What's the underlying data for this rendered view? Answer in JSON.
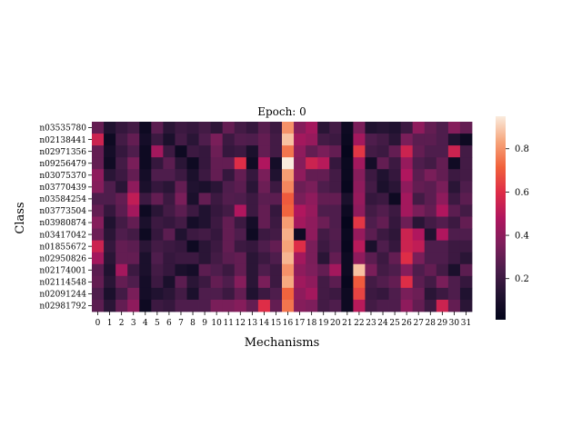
{
  "chart_data": {
    "type": "heatmap",
    "title": "Epoch: 0",
    "xlabel": "Mechanisms",
    "ylabel": "Class",
    "x_ticks": [
      "0",
      "1",
      "2",
      "3",
      "4",
      "5",
      "6",
      "7",
      "8",
      "9",
      "10",
      "11",
      "12",
      "13",
      "14",
      "15",
      "16",
      "17",
      "18",
      "19",
      "20",
      "21",
      "22",
      "23",
      "24",
      "25",
      "26",
      "27",
      "28",
      "29",
      "30",
      "31"
    ],
    "y_ticks": [
      "n03535780",
      "n02138441",
      "n02971356",
      "n09256479",
      "n03075370",
      "n03770439",
      "n03584254",
      "n03773504",
      "n03980874",
      "n03417042",
      "n01855672",
      "n02950826",
      "n02174001",
      "n02114548",
      "n02091244",
      "n02981792"
    ],
    "colorbar_ticks": [
      0.2,
      0.4,
      0.6,
      0.8
    ],
    "vmin": 0.01,
    "vmax": 0.95,
    "colormap": "rocket",
    "values": [
      [
        0.3,
        0.12,
        0.18,
        0.22,
        0.05,
        0.28,
        0.15,
        0.2,
        0.18,
        0.22,
        0.16,
        0.3,
        0.22,
        0.18,
        0.27,
        0.2,
        0.8,
        0.38,
        0.45,
        0.15,
        0.22,
        0.05,
        0.35,
        0.12,
        0.14,
        0.12,
        0.2,
        0.4,
        0.3,
        0.25,
        0.38,
        0.3
      ],
      [
        0.55,
        0.05,
        0.22,
        0.3,
        0.08,
        0.2,
        0.1,
        0.22,
        0.15,
        0.25,
        0.35,
        0.2,
        0.26,
        0.25,
        0.3,
        0.22,
        0.88,
        0.45,
        0.42,
        0.22,
        0.2,
        0.04,
        0.45,
        0.25,
        0.22,
        0.15,
        0.35,
        0.28,
        0.28,
        0.25,
        0.12,
        0.05
      ],
      [
        0.3,
        0.08,
        0.18,
        0.25,
        0.05,
        0.45,
        0.2,
        0.05,
        0.2,
        0.18,
        0.32,
        0.18,
        0.2,
        0.1,
        0.3,
        0.22,
        0.75,
        0.4,
        0.3,
        0.35,
        0.3,
        0.02,
        0.62,
        0.22,
        0.2,
        0.3,
        0.55,
        0.3,
        0.25,
        0.25,
        0.55,
        0.22
      ],
      [
        0.3,
        0.06,
        0.22,
        0.35,
        0.05,
        0.18,
        0.28,
        0.15,
        0.05,
        0.18,
        0.3,
        0.3,
        0.6,
        0.06,
        0.48,
        0.08,
        0.95,
        0.38,
        0.55,
        0.5,
        0.18,
        0.04,
        0.45,
        0.08,
        0.3,
        0.2,
        0.42,
        0.25,
        0.22,
        0.3,
        0.06,
        0.22
      ],
      [
        0.4,
        0.15,
        0.2,
        0.3,
        0.08,
        0.25,
        0.25,
        0.2,
        0.1,
        0.2,
        0.3,
        0.18,
        0.3,
        0.18,
        0.35,
        0.12,
        0.82,
        0.4,
        0.3,
        0.3,
        0.22,
        0.04,
        0.38,
        0.2,
        0.12,
        0.18,
        0.48,
        0.28,
        0.35,
        0.3,
        0.2,
        0.22
      ],
      [
        0.38,
        0.25,
        0.15,
        0.4,
        0.1,
        0.18,
        0.15,
        0.3,
        0.12,
        0.1,
        0.15,
        0.25,
        0.28,
        0.15,
        0.32,
        0.2,
        0.78,
        0.32,
        0.35,
        0.25,
        0.22,
        0.03,
        0.4,
        0.22,
        0.1,
        0.15,
        0.4,
        0.3,
        0.28,
        0.35,
        0.15,
        0.25
      ],
      [
        0.25,
        0.25,
        0.3,
        0.52,
        0.2,
        0.3,
        0.2,
        0.35,
        0.1,
        0.3,
        0.2,
        0.26,
        0.25,
        0.2,
        0.28,
        0.28,
        0.7,
        0.35,
        0.4,
        0.3,
        0.3,
        0.1,
        0.42,
        0.18,
        0.2,
        0.05,
        0.45,
        0.22,
        0.28,
        0.4,
        0.2,
        0.28
      ],
      [
        0.3,
        0.18,
        0.28,
        0.45,
        0.05,
        0.15,
        0.22,
        0.28,
        0.2,
        0.12,
        0.18,
        0.22,
        0.48,
        0.2,
        0.3,
        0.18,
        0.72,
        0.48,
        0.42,
        0.25,
        0.25,
        0.05,
        0.4,
        0.22,
        0.26,
        0.2,
        0.45,
        0.35,
        0.3,
        0.48,
        0.28,
        0.22
      ],
      [
        0.38,
        0.12,
        0.22,
        0.3,
        0.1,
        0.2,
        0.18,
        0.22,
        0.08,
        0.12,
        0.2,
        0.3,
        0.2,
        0.08,
        0.3,
        0.2,
        0.82,
        0.45,
        0.4,
        0.32,
        0.25,
        0.02,
        0.62,
        0.25,
        0.3,
        0.18,
        0.32,
        0.15,
        0.22,
        0.26,
        0.2,
        0.3
      ],
      [
        0.32,
        0.15,
        0.25,
        0.22,
        0.05,
        0.18,
        0.28,
        0.12,
        0.2,
        0.22,
        0.18,
        0.3,
        0.25,
        0.05,
        0.2,
        0.22,
        0.85,
        0.06,
        0.4,
        0.22,
        0.26,
        0.04,
        0.42,
        0.28,
        0.2,
        0.16,
        0.55,
        0.48,
        0.12,
        0.48,
        0.25,
        0.25
      ],
      [
        0.55,
        0.18,
        0.3,
        0.28,
        0.15,
        0.22,
        0.2,
        0.18,
        0.05,
        0.15,
        0.2,
        0.3,
        0.2,
        0.18,
        0.25,
        0.3,
        0.83,
        0.6,
        0.35,
        0.2,
        0.25,
        0.03,
        0.5,
        0.1,
        0.25,
        0.18,
        0.55,
        0.52,
        0.25,
        0.25,
        0.2,
        0.2
      ],
      [
        0.45,
        0.15,
        0.3,
        0.3,
        0.1,
        0.25,
        0.18,
        0.2,
        0.2,
        0.15,
        0.22,
        0.28,
        0.3,
        0.15,
        0.2,
        0.25,
        0.86,
        0.45,
        0.35,
        0.15,
        0.3,
        0.05,
        0.4,
        0.28,
        0.2,
        0.3,
        0.6,
        0.35,
        0.25,
        0.25,
        0.2,
        0.15
      ],
      [
        0.28,
        0.12,
        0.45,
        0.2,
        0.1,
        0.22,
        0.18,
        0.1,
        0.08,
        0.28,
        0.25,
        0.2,
        0.3,
        0.15,
        0.25,
        0.2,
        0.8,
        0.4,
        0.36,
        0.3,
        0.45,
        0.05,
        0.88,
        0.35,
        0.22,
        0.25,
        0.38,
        0.25,
        0.3,
        0.22,
        0.1,
        0.28
      ],
      [
        0.3,
        0.15,
        0.3,
        0.25,
        0.08,
        0.2,
        0.1,
        0.28,
        0.15,
        0.2,
        0.3,
        0.25,
        0.38,
        0.15,
        0.35,
        0.2,
        0.84,
        0.44,
        0.4,
        0.22,
        0.28,
        0.03,
        0.7,
        0.22,
        0.26,
        0.3,
        0.6,
        0.28,
        0.22,
        0.35,
        0.25,
        0.18
      ],
      [
        0.25,
        0.1,
        0.22,
        0.35,
        0.08,
        0.12,
        0.15,
        0.22,
        0.1,
        0.25,
        0.25,
        0.2,
        0.3,
        0.12,
        0.2,
        0.25,
        0.72,
        0.4,
        0.45,
        0.22,
        0.2,
        0.05,
        0.65,
        0.2,
        0.18,
        0.25,
        0.35,
        0.32,
        0.15,
        0.2,
        0.25,
        0.12
      ],
      [
        0.28,
        0.15,
        0.3,
        0.4,
        0.05,
        0.2,
        0.18,
        0.25,
        0.25,
        0.25,
        0.35,
        0.35,
        0.38,
        0.3,
        0.6,
        0.3,
        0.75,
        0.38,
        0.36,
        0.22,
        0.25,
        0.05,
        0.5,
        0.22,
        0.25,
        0.25,
        0.4,
        0.3,
        0.2,
        0.55,
        0.3,
        0.15
      ]
    ]
  }
}
